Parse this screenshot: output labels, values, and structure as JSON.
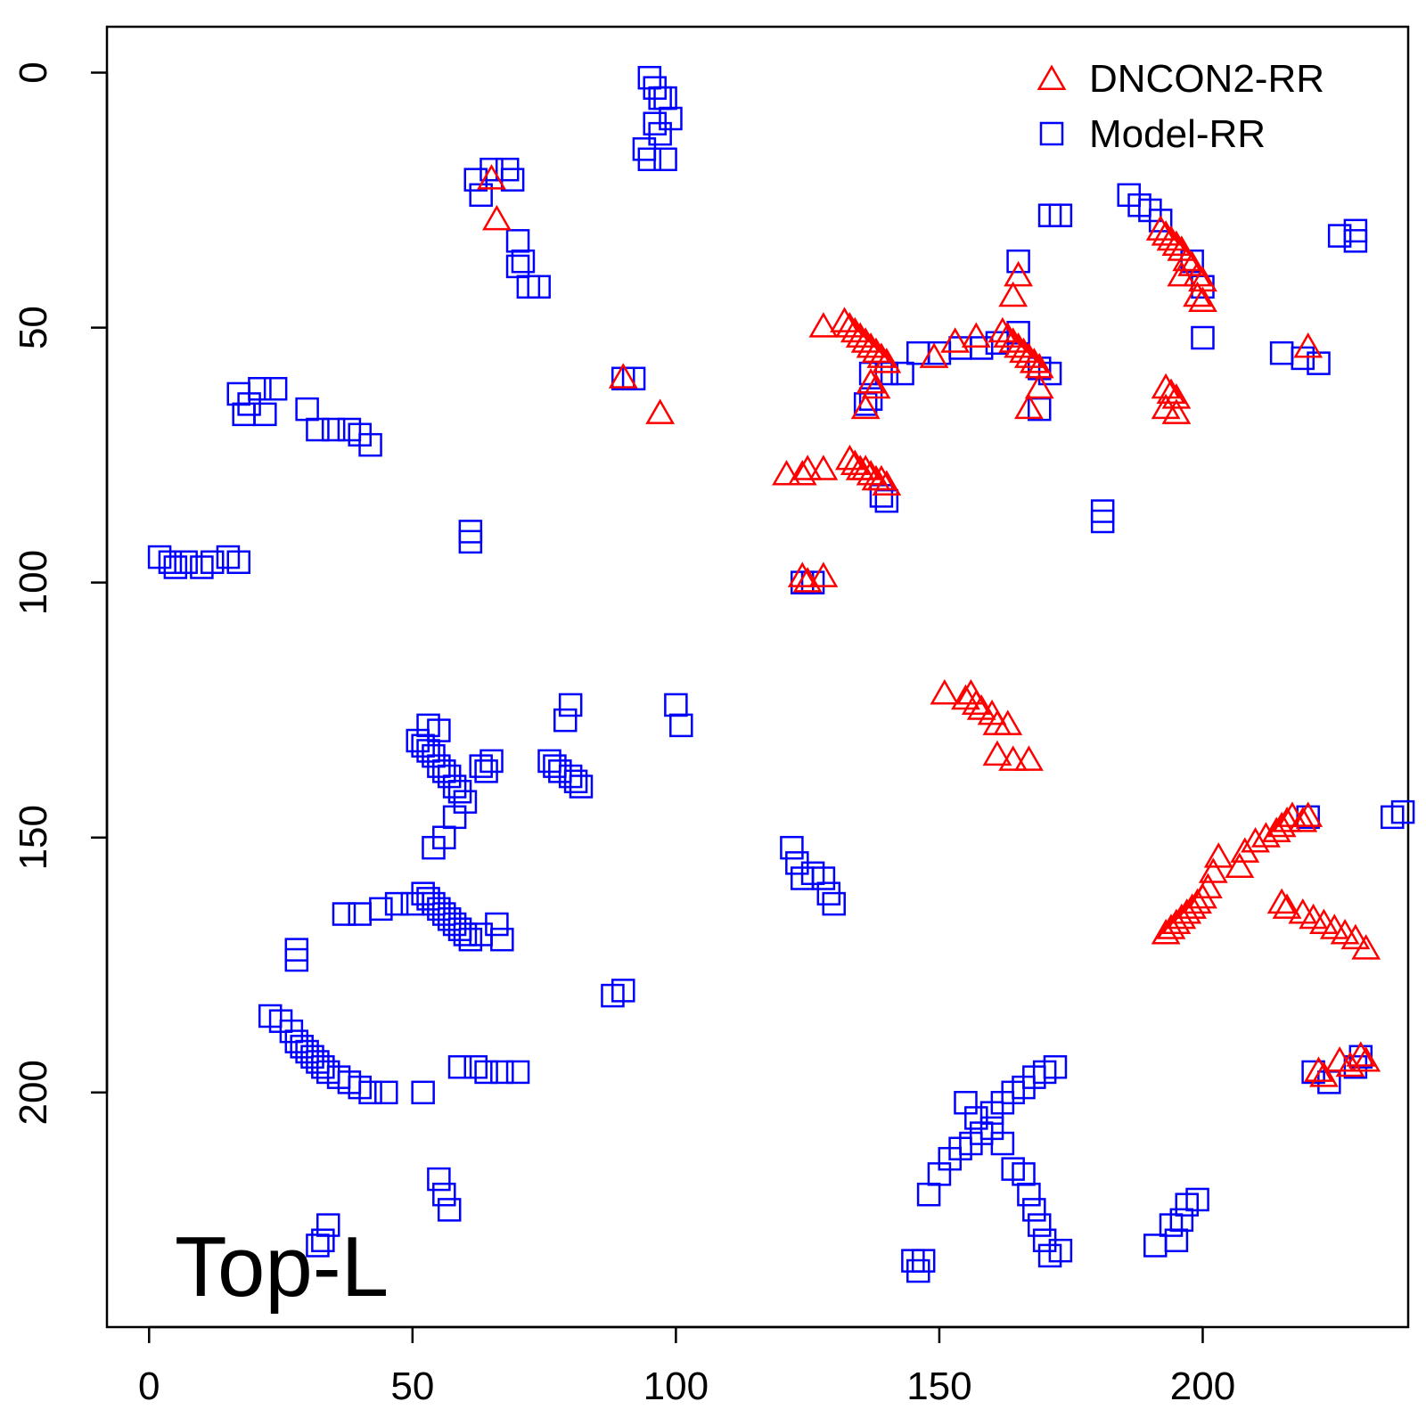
{
  "chart_data": {
    "type": "scatter",
    "title": "",
    "xlabel": "",
    "ylabel": "",
    "annotation": "Top-L",
    "xlim": [
      -8,
      239
    ],
    "ylim": [
      -9,
      246
    ],
    "y_reversed": true,
    "x_ticks": [
      0,
      50,
      100,
      150,
      200
    ],
    "y_ticks": [
      0,
      50,
      100,
      150,
      200
    ],
    "grid": false,
    "legend_position": "top-right",
    "series": [
      {
        "name": "DNCON2-RR",
        "marker": "triangle-open",
        "color": "#ff0000",
        "points": [
          [
            65,
            21
          ],
          [
            66,
            29
          ],
          [
            90,
            60
          ],
          [
            97,
            67
          ],
          [
            128,
            50
          ],
          [
            132,
            49
          ],
          [
            133,
            50
          ],
          [
            134,
            51
          ],
          [
            135,
            52
          ],
          [
            136,
            53
          ],
          [
            137,
            54
          ],
          [
            138,
            55
          ],
          [
            139,
            56
          ],
          [
            140,
            57
          ],
          [
            137,
            61
          ],
          [
            138,
            62
          ],
          [
            136,
            66
          ],
          [
            149,
            56
          ],
          [
            153,
            53
          ],
          [
            157,
            52
          ],
          [
            162,
            51
          ],
          [
            163,
            52
          ],
          [
            164,
            53
          ],
          [
            165,
            54
          ],
          [
            166,
            55
          ],
          [
            167,
            56
          ],
          [
            168,
            57
          ],
          [
            169,
            58
          ],
          [
            164,
            44
          ],
          [
            165,
            40
          ],
          [
            169,
            62
          ],
          [
            167,
            66
          ],
          [
            121,
            79
          ],
          [
            124,
            79
          ],
          [
            125,
            78
          ],
          [
            128,
            78
          ],
          [
            133,
            76
          ],
          [
            134,
            77
          ],
          [
            135,
            78
          ],
          [
            136,
            78
          ],
          [
            137,
            79
          ],
          [
            138,
            80
          ],
          [
            139,
            80
          ],
          [
            140,
            81
          ],
          [
            124,
            99
          ],
          [
            125,
            100
          ],
          [
            128,
            99
          ],
          [
            151,
            122
          ],
          [
            155,
            123
          ],
          [
            156,
            122
          ],
          [
            157,
            124
          ],
          [
            158,
            125
          ],
          [
            160,
            126
          ],
          [
            161,
            128
          ],
          [
            163,
            128
          ],
          [
            161,
            134
          ],
          [
            164,
            135
          ],
          [
            167,
            135
          ],
          [
            192,
            31
          ],
          [
            193,
            32
          ],
          [
            194,
            33
          ],
          [
            195,
            34
          ],
          [
            196,
            35
          ],
          [
            197,
            37
          ],
          [
            198,
            38
          ],
          [
            199,
            40
          ],
          [
            200,
            41
          ],
          [
            196,
            40
          ],
          [
            199,
            44
          ],
          [
            200,
            45
          ],
          [
            220,
            54
          ],
          [
            193,
            62
          ],
          [
            194,
            63
          ],
          [
            195,
            64
          ],
          [
            193,
            66
          ],
          [
            195,
            67
          ],
          [
            193,
            169
          ],
          [
            194,
            168
          ],
          [
            195,
            167
          ],
          [
            196,
            166
          ],
          [
            197,
            165
          ],
          [
            198,
            164
          ],
          [
            199,
            163
          ],
          [
            200,
            162
          ],
          [
            201,
            160
          ],
          [
            202,
            157
          ],
          [
            203,
            154
          ],
          [
            207,
            156
          ],
          [
            208,
            153
          ],
          [
            210,
            151
          ],
          [
            212,
            150
          ],
          [
            214,
            149
          ],
          [
            215,
            148
          ],
          [
            216,
            147
          ],
          [
            217,
            146
          ],
          [
            219,
            147
          ],
          [
            220,
            146
          ],
          [
            215,
            163
          ],
          [
            216,
            164
          ],
          [
            219,
            165
          ],
          [
            221,
            166
          ],
          [
            223,
            167
          ],
          [
            225,
            168
          ],
          [
            227,
            169
          ],
          [
            229,
            170
          ],
          [
            231,
            172
          ],
          [
            222,
            196
          ],
          [
            223,
            197
          ],
          [
            226,
            194
          ],
          [
            228,
            195
          ],
          [
            230,
            193
          ],
          [
            231,
            194
          ]
        ]
      },
      {
        "name": "Model-RR",
        "marker": "square-open",
        "color": "#0000ff",
        "points": [
          [
            95,
            1
          ],
          [
            96,
            3
          ],
          [
            97,
            5
          ],
          [
            98,
            5
          ],
          [
            99,
            9
          ],
          [
            96,
            10
          ],
          [
            97,
            12
          ],
          [
            94,
            15
          ],
          [
            95,
            17
          ],
          [
            98,
            17
          ],
          [
            62,
            21
          ],
          [
            63,
            24
          ],
          [
            65,
            19
          ],
          [
            68,
            19
          ],
          [
            69,
            21
          ],
          [
            70,
            33
          ],
          [
            70,
            38
          ],
          [
            71,
            37
          ],
          [
            72,
            42
          ],
          [
            74,
            42
          ],
          [
            17,
            63
          ],
          [
            18,
            67
          ],
          [
            19,
            65
          ],
          [
            21,
            62
          ],
          [
            22,
            67
          ],
          [
            24,
            62
          ],
          [
            30,
            66
          ],
          [
            32,
            70
          ],
          [
            35,
            70
          ],
          [
            38,
            70
          ],
          [
            40,
            71
          ],
          [
            42,
            73
          ],
          [
            2,
            95
          ],
          [
            4,
            96
          ],
          [
            5,
            97
          ],
          [
            7,
            96
          ],
          [
            10,
            97
          ],
          [
            12,
            96
          ],
          [
            15,
            95
          ],
          [
            17,
            96
          ],
          [
            61,
            90
          ],
          [
            61,
            92
          ],
          [
            90,
            60
          ],
          [
            92,
            60
          ],
          [
            171,
            28
          ],
          [
            173,
            28
          ],
          [
            186,
            24
          ],
          [
            188,
            26
          ],
          [
            190,
            27
          ],
          [
            192,
            29
          ],
          [
            198,
            37
          ],
          [
            200,
            42
          ],
          [
            200,
            52
          ],
          [
            226,
            32
          ],
          [
            229,
            31
          ],
          [
            229,
            33
          ],
          [
            215,
            55
          ],
          [
            219,
            56
          ],
          [
            222,
            57
          ],
          [
            146,
            55
          ],
          [
            150,
            55
          ],
          [
            154,
            54
          ],
          [
            158,
            54
          ],
          [
            161,
            53
          ],
          [
            165,
            37
          ],
          [
            165,
            51
          ],
          [
            169,
            58
          ],
          [
            171,
            59
          ],
          [
            169,
            66
          ],
          [
            137,
            59
          ],
          [
            140,
            59
          ],
          [
            143,
            59
          ],
          [
            136,
            65
          ],
          [
            137,
            64
          ],
          [
            139,
            83
          ],
          [
            140,
            84
          ],
          [
            181,
            86
          ],
          [
            181,
            88
          ],
          [
            124,
            100
          ],
          [
            126,
            100
          ],
          [
            51,
            131
          ],
          [
            52,
            132
          ],
          [
            53,
            133
          ],
          [
            54,
            134
          ],
          [
            55,
            136
          ],
          [
            56,
            137
          ],
          [
            57,
            138
          ],
          [
            58,
            140
          ],
          [
            59,
            141
          ],
          [
            60,
            143
          ],
          [
            58,
            146
          ],
          [
            56,
            150
          ],
          [
            54,
            152
          ],
          [
            53,
            128
          ],
          [
            55,
            129
          ],
          [
            63,
            136
          ],
          [
            64,
            137
          ],
          [
            65,
            135
          ],
          [
            76,
            135
          ],
          [
            77,
            136
          ],
          [
            78,
            137
          ],
          [
            80,
            138
          ],
          [
            81,
            139
          ],
          [
            82,
            140
          ],
          [
            79,
            127
          ],
          [
            80,
            124
          ],
          [
            100,
            124
          ],
          [
            101,
            128
          ],
          [
            52,
            161
          ],
          [
            53,
            162
          ],
          [
            54,
            163
          ],
          [
            55,
            164
          ],
          [
            56,
            165
          ],
          [
            57,
            166
          ],
          [
            58,
            167
          ],
          [
            59,
            168
          ],
          [
            60,
            169
          ],
          [
            61,
            170
          ],
          [
            63,
            169
          ],
          [
            66,
            167
          ],
          [
            67,
            170
          ],
          [
            37,
            165
          ],
          [
            40,
            165
          ],
          [
            44,
            164
          ],
          [
            47,
            163
          ],
          [
            50,
            163
          ],
          [
            28,
            172
          ],
          [
            28,
            174
          ],
          [
            23,
            185
          ],
          [
            25,
            186
          ],
          [
            27,
            188
          ],
          [
            28,
            190
          ],
          [
            29,
            191
          ],
          [
            30,
            192
          ],
          [
            31,
            193
          ],
          [
            32,
            194
          ],
          [
            33,
            195
          ],
          [
            34,
            196
          ],
          [
            36,
            197
          ],
          [
            38,
            198
          ],
          [
            40,
            199
          ],
          [
            42,
            200
          ],
          [
            45,
            200
          ],
          [
            52,
            200
          ],
          [
            55,
            217
          ],
          [
            56,
            220
          ],
          [
            57,
            223
          ],
          [
            59,
            195
          ],
          [
            62,
            195
          ],
          [
            64,
            196
          ],
          [
            67,
            196
          ],
          [
            70,
            196
          ],
          [
            88,
            181
          ],
          [
            90,
            180
          ],
          [
            33,
            229
          ],
          [
            34,
            226
          ],
          [
            32,
            230
          ],
          [
            122,
            152
          ],
          [
            123,
            155
          ],
          [
            124,
            158
          ],
          [
            126,
            157
          ],
          [
            128,
            158
          ],
          [
            129,
            161
          ],
          [
            130,
            163
          ],
          [
            148,
            220
          ],
          [
            150,
            216
          ],
          [
            152,
            213
          ],
          [
            154,
            211
          ],
          [
            156,
            210
          ],
          [
            158,
            208
          ],
          [
            160,
            204
          ],
          [
            162,
            202
          ],
          [
            164,
            200
          ],
          [
            166,
            199
          ],
          [
            168,
            197
          ],
          [
            170,
            196
          ],
          [
            172,
            195
          ],
          [
            155,
            202
          ],
          [
            157,
            205
          ],
          [
            160,
            207
          ],
          [
            162,
            210
          ],
          [
            164,
            215
          ],
          [
            166,
            216
          ],
          [
            167,
            220
          ],
          [
            168,
            223
          ],
          [
            169,
            226
          ],
          [
            170,
            229
          ],
          [
            171,
            232
          ],
          [
            173,
            231
          ],
          [
            145,
            233
          ],
          [
            147,
            233
          ],
          [
            146,
            235
          ],
          [
            194,
            226
          ],
          [
            195,
            229
          ],
          [
            196,
            225
          ],
          [
            197,
            222
          ],
          [
            199,
            221
          ],
          [
            191,
            230
          ],
          [
            238,
            145
          ],
          [
            236,
            146
          ],
          [
            220,
            146
          ],
          [
            221,
            196
          ],
          [
            224,
            198
          ],
          [
            229,
            195
          ],
          [
            230,
            193
          ]
        ]
      }
    ]
  }
}
